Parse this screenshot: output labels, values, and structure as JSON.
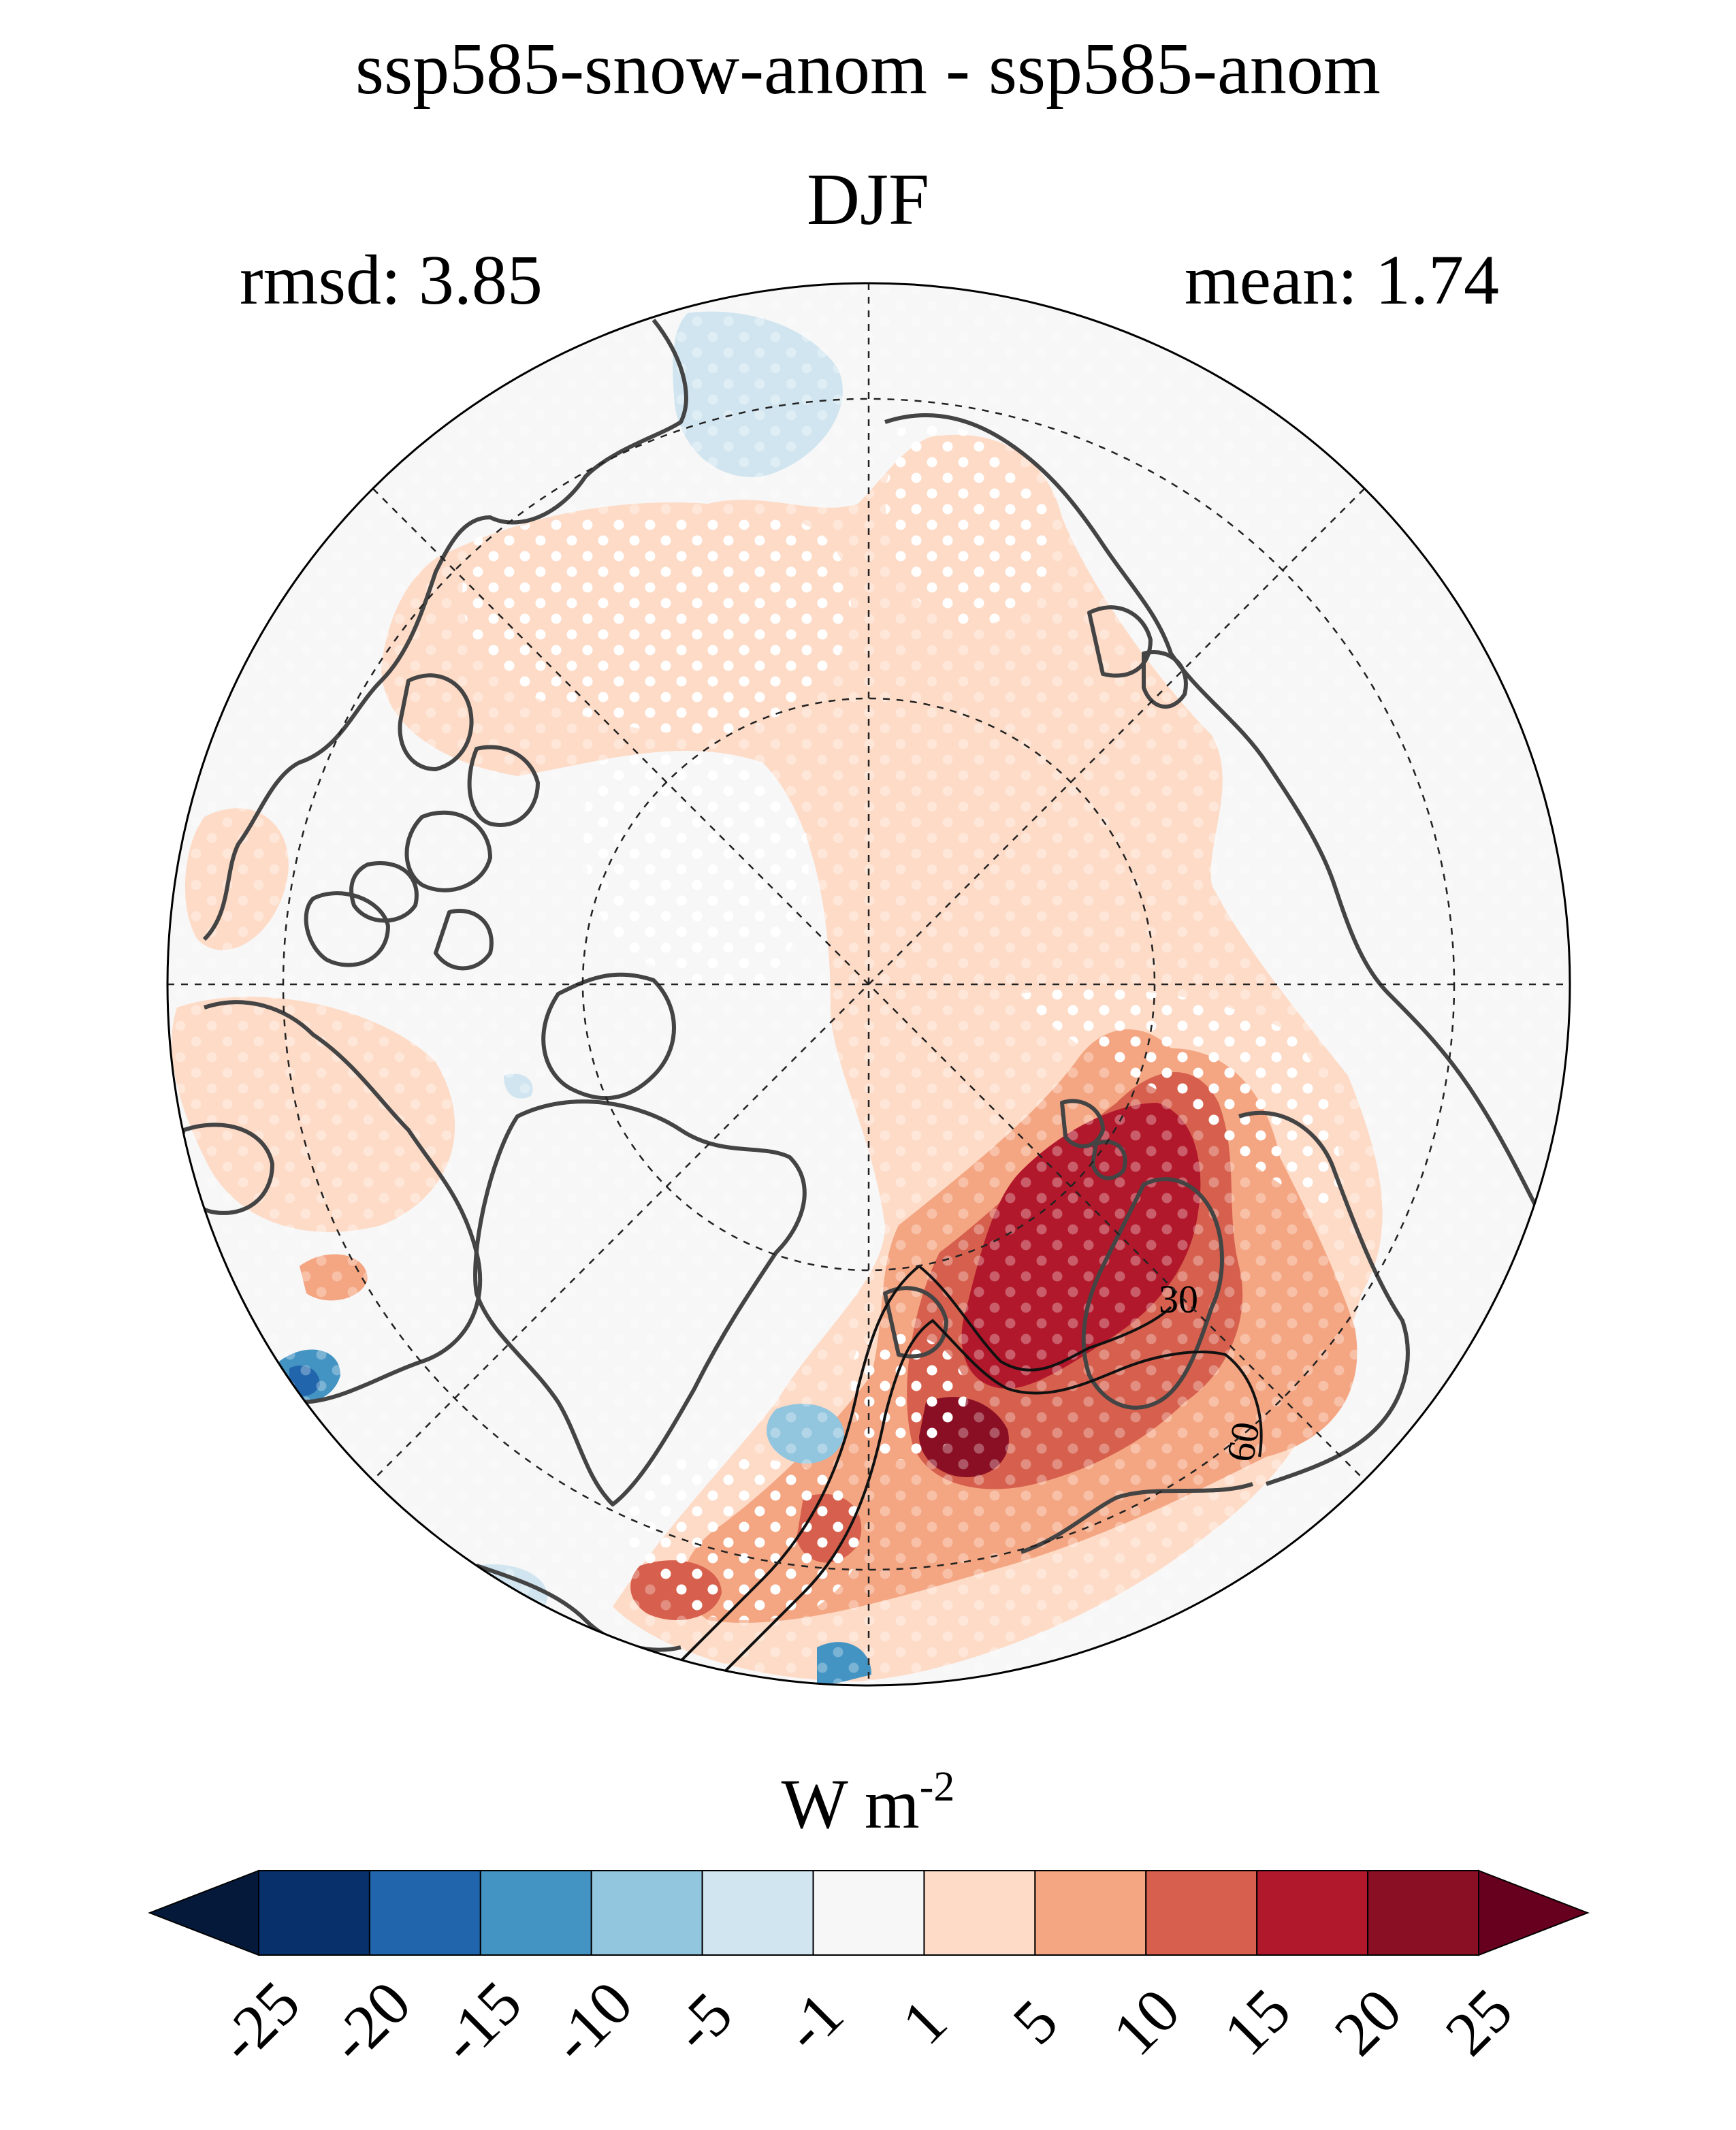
{
  "header": {
    "title": "ssp585-snow-anom - ssp585-anom",
    "season": "DJF",
    "rmsd_label": "rmsd: 3.85",
    "mean_label": "mean: 1.74"
  },
  "map": {
    "projection": "north-polar-stereographic",
    "graticule": "dashed",
    "stippling": "white dots",
    "contour_labels": [
      "30",
      "60"
    ]
  },
  "colorbar": {
    "units_base": "W m",
    "units_exp": "-2",
    "ticks": [
      "-25",
      "-20",
      "-15",
      "-10",
      "-5",
      "-1",
      "1",
      "5",
      "10",
      "15",
      "20",
      "25"
    ],
    "colors": [
      "#08306b",
      "#2166ac",
      "#4393c3",
      "#92c5de",
      "#d1e5f0",
      "#f7f7f7",
      "#fddbc7",
      "#f4a582",
      "#d6604d",
      "#b2182b",
      "#8a0f24"
    ],
    "under_color": "#051a3a",
    "over_color": "#67001f",
    "extend": "both"
  }
}
